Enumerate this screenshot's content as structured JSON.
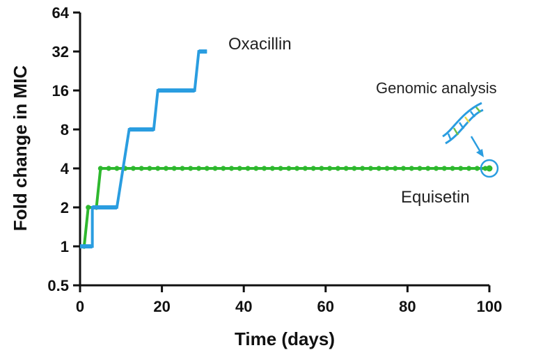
{
  "chart_data": {
    "type": "line",
    "xlabel": "Time (days)",
    "ylabel": "Fold change in MIC",
    "xlim": [
      0,
      100
    ],
    "x_ticks": [
      0,
      20,
      40,
      60,
      80,
      100
    ],
    "x_tick_labels": [
      "0",
      "20",
      "40",
      "60",
      "80",
      "100"
    ],
    "ylim": [
      0.5,
      64
    ],
    "y_scale": "log2",
    "y_ticks": [
      0.5,
      1,
      2,
      4,
      8,
      16,
      32,
      64
    ],
    "y_tick_labels": [
      "0.5",
      "1",
      "2",
      "4",
      "8",
      "16",
      "32",
      "64"
    ],
    "grid": false,
    "legend": "none",
    "series": [
      {
        "name": "Oxacillin",
        "color": "#2a9de0",
        "step_segments": [
          {
            "x": [
              0,
              3
            ],
            "y": 1
          },
          {
            "x": [
              3,
              9
            ],
            "y": 2
          },
          {
            "x": [
              12,
              18
            ],
            "y": 8
          },
          {
            "x": [
              19,
              28
            ],
            "y": 16
          },
          {
            "x": [
              29,
              31
            ],
            "y": 32
          }
        ],
        "x": [
          0,
          3,
          3,
          9,
          12,
          18,
          19,
          28,
          29,
          31
        ],
        "y": [
          1,
          1,
          2,
          2,
          8,
          8,
          16,
          16,
          32,
          32
        ]
      },
      {
        "name": "Equisetin",
        "color": "#2eb82e",
        "x": [
          1,
          2,
          4,
          5,
          100
        ],
        "y": [
          1,
          2,
          2,
          4,
          4
        ],
        "markers_x_range": [
          5,
          100
        ],
        "markers_y": 4
      }
    ],
    "annotations": {
      "genomic_analysis": "Genomic analysis"
    }
  }
}
